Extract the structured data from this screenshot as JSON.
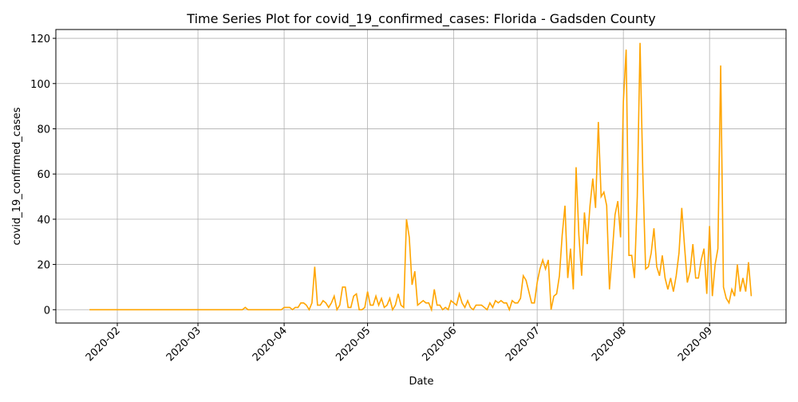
{
  "chart_data": {
    "type": "line",
    "title": "Time Series Plot for covid_19_confirmed_cases: Florida - Gadsden County",
    "x_label": "Date",
    "y_label": "covid_19_confirmed_cases",
    "color": "#ffa500",
    "values": [
      0,
      0,
      0,
      0,
      0,
      0,
      0,
      0,
      0,
      0,
      0,
      0,
      0,
      0,
      0,
      0,
      0,
      0,
      0,
      0,
      0,
      0,
      0,
      0,
      0,
      0,
      0,
      0,
      0,
      0,
      0,
      0,
      0,
      0,
      0,
      0,
      0,
      0,
      0,
      0,
      0,
      0,
      0,
      0,
      0,
      0,
      0,
      0,
      0,
      0,
      0,
      0,
      0,
      0,
      0,
      0,
      1,
      0,
      0,
      0,
      0,
      0,
      0,
      0,
      0,
      0,
      0,
      0,
      0,
      0,
      1,
      1,
      1,
      0,
      1,
      1,
      3,
      3,
      2,
      0,
      3,
      19,
      2,
      2,
      4,
      3,
      1,
      3,
      6,
      0,
      2,
      10,
      10,
      1,
      1,
      6,
      7,
      0,
      0,
      1,
      8,
      2,
      2,
      6,
      2,
      5,
      1,
      2,
      5,
      0,
      2,
      7,
      2,
      1,
      40,
      32,
      11,
      17,
      2,
      3,
      4,
      3,
      3,
      0,
      9,
      2,
      2,
      0,
      1,
      0,
      4,
      3,
      2,
      7,
      3,
      1,
      4,
      1,
      0,
      2,
      2,
      2,
      1,
      0,
      3,
      1,
      4,
      3,
      4,
      3,
      3,
      0,
      4,
      3,
      3,
      5,
      15,
      13,
      8,
      3,
      3,
      12,
      18,
      22,
      18,
      22,
      0,
      6,
      7,
      15,
      33,
      46,
      14,
      27,
      9,
      63,
      33,
      15,
      43,
      29,
      46,
      58,
      45,
      83,
      50,
      52,
      46,
      9,
      25,
      42,
      48,
      32,
      92,
      115,
      24,
      24,
      14,
      50,
      118,
      60,
      18,
      19,
      25,
      36,
      19,
      15,
      24,
      14,
      9,
      14,
      8,
      15,
      25,
      45,
      28,
      12,
      17,
      29,
      14,
      14,
      22,
      27,
      7,
      37,
      6,
      20,
      27,
      108,
      10,
      5,
      3,
      9,
      6,
      20,
      8,
      14,
      8,
      21,
      6
    ],
    "xlim": [
      -12.1,
      250.5
    ],
    "xticks": [
      {
        "value": 10,
        "label": "2020-02"
      },
      {
        "value": 39,
        "label": "2020-03"
      },
      {
        "value": 70,
        "label": "2020-04"
      },
      {
        "value": 100,
        "label": "2020-05"
      },
      {
        "value": 131,
        "label": "2020-06"
      },
      {
        "value": 161,
        "label": "2020-07"
      },
      {
        "value": 192,
        "label": "2020-08"
      },
      {
        "value": 223,
        "label": "2020-09"
      }
    ],
    "ylim": [
      -5.9,
      123.9
    ],
    "yticks": [
      0,
      20,
      40,
      60,
      80,
      100,
      120
    ],
    "grid": true
  }
}
